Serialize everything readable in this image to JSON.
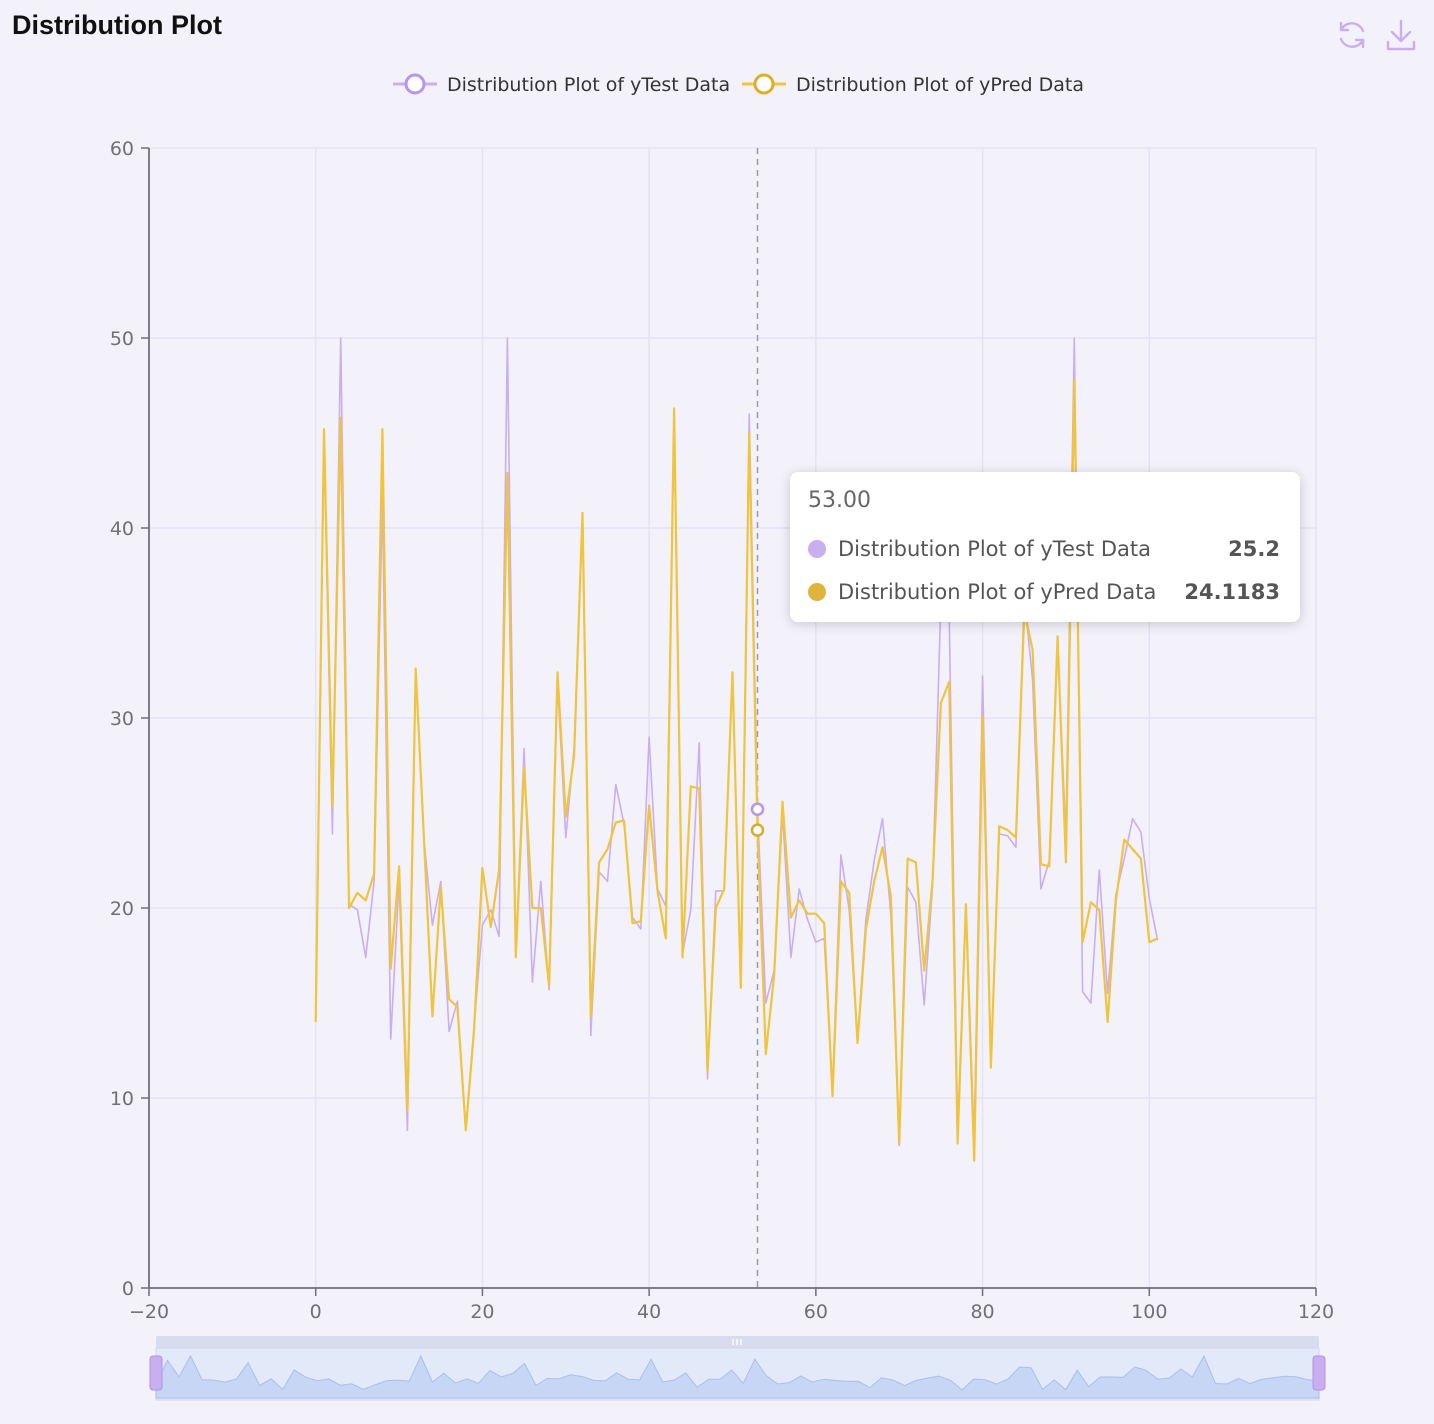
{
  "title": "Distribution Plot",
  "toolbar": {
    "refresh_icon": "refresh-icon",
    "download_icon": "download-icon"
  },
  "colors": {
    "ytest": "#c9aef0",
    "ypred": "#f0c43c",
    "axis": "#6e7079",
    "grid": "#e3e3f3",
    "tick_text": "#6e7079"
  },
  "tooltip": {
    "header": "53.00",
    "rows": [
      {
        "name": "Distribution Plot of yTest Data",
        "value": "25.2",
        "color": "#c9aef0"
      },
      {
        "name": "Distribution Plot of yPred Data",
        "value": "24.1183",
        "color": "#e0b43a"
      }
    ]
  },
  "chart_data": {
    "type": "line",
    "title": "",
    "xlabel": "",
    "ylabel": "",
    "xlim": [
      -20,
      120
    ],
    "ylim": [
      0,
      60
    ],
    "x_ticks": [
      -20,
      0,
      20,
      40,
      60,
      80,
      100,
      120
    ],
    "y_ticks": [
      0,
      10,
      20,
      30,
      40,
      50,
      60
    ],
    "grid": true,
    "legend_position": "top-center",
    "crosshair_x": 53,
    "x": [
      0,
      1,
      2,
      3,
      4,
      5,
      6,
      7,
      8,
      9,
      10,
      11,
      12,
      13,
      14,
      15,
      16,
      17,
      18,
      19,
      20,
      21,
      22,
      23,
      24,
      25,
      26,
      27,
      28,
      29,
      30,
      31,
      32,
      33,
      34,
      35,
      36,
      37,
      38,
      39,
      40,
      41,
      42,
      43,
      44,
      45,
      46,
      47,
      48,
      49,
      50,
      51,
      52,
      53,
      54,
      55,
      56,
      57,
      58,
      59,
      60,
      61,
      62,
      63,
      64,
      65,
      66,
      67,
      68,
      69,
      70,
      71,
      72,
      73,
      74,
      75,
      76,
      77,
      78,
      79,
      80,
      81,
      82,
      83,
      84,
      85,
      86,
      87,
      88,
      89,
      90,
      91,
      92,
      93,
      94,
      95,
      96,
      97,
      98,
      99,
      100,
      101
    ],
    "series": [
      {
        "name": "Distribution Plot of yTest Data",
        "color": "#c9aef0",
        "values": [
          14.1,
          44.6,
          23.9,
          50.0,
          20.2,
          19.9,
          17.4,
          21.4,
          41.6,
          13.1,
          21.4,
          8.3,
          32.5,
          23.5,
          19.1,
          21.4,
          13.5,
          15.1,
          8.4,
          13.8,
          19.1,
          19.9,
          18.5,
          50.0,
          17.5,
          28.4,
          16.1,
          21.4,
          15.7,
          31.9,
          23.7,
          28.4,
          40.7,
          13.3,
          21.9,
          21.4,
          26.5,
          24.4,
          19.5,
          18.9,
          29.0,
          21.0,
          20.1,
          45.9,
          17.6,
          19.9,
          28.7,
          11.0,
          20.9,
          20.9,
          32.4,
          15.8,
          46.0,
          25.2,
          15.0,
          16.7,
          25.0,
          17.4,
          21.0,
          19.4,
          18.2,
          18.4,
          10.4,
          22.8,
          19.9,
          13.0,
          19.4,
          22.5,
          24.7,
          19.6,
          7.5,
          21.1,
          20.3,
          14.9,
          21.2,
          36.2,
          35.4,
          8.3,
          20.1,
          7.8,
          32.2,
          11.8,
          23.9,
          23.8,
          23.2,
          36.4,
          32.0,
          21.0,
          22.5,
          33.8,
          23.8,
          50.0,
          15.6,
          15.0,
          22.0,
          15.5,
          20.7,
          22.6,
          24.7,
          24.0,
          20.5,
          18.3
        ]
      },
      {
        "name": "Distribution Plot of yPred Data",
        "color": "#f0c43c",
        "values": [
          14.0,
          45.2,
          25.3,
          45.8,
          20.0,
          20.8,
          20.4,
          21.8,
          45.2,
          16.8,
          22.2,
          9.3,
          32.6,
          23.5,
          14.3,
          21.1,
          15.2,
          14.8,
          8.3,
          13.6,
          22.1,
          19.0,
          22.0,
          42.9,
          17.4,
          27.4,
          20.0,
          20.0,
          15.9,
          32.4,
          24.8,
          28.0,
          40.8,
          14.3,
          22.4,
          23.1,
          24.5,
          24.6,
          19.2,
          19.3,
          25.4,
          20.9,
          18.4,
          46.3,
          17.4,
          26.4,
          26.3,
          11.4,
          20.0,
          21.0,
          32.4,
          15.8,
          45.0,
          24.1,
          12.3,
          16.5,
          25.6,
          19.5,
          20.4,
          19.7,
          19.7,
          19.2,
          10.1,
          21.4,
          20.8,
          12.9,
          18.9,
          21.4,
          23.2,
          20.6,
          7.6,
          22.6,
          22.4,
          16.7,
          21.5,
          30.8,
          31.9,
          7.6,
          20.2,
          6.7,
          30.1,
          11.6,
          24.3,
          24.1,
          23.7,
          35.6,
          33.6,
          22.3,
          22.2,
          34.3,
          22.4,
          47.8,
          18.2,
          20.3,
          19.9,
          14.0,
          20.4,
          23.6,
          23.1,
          22.6,
          18.2,
          18.4
        ]
      }
    ]
  }
}
